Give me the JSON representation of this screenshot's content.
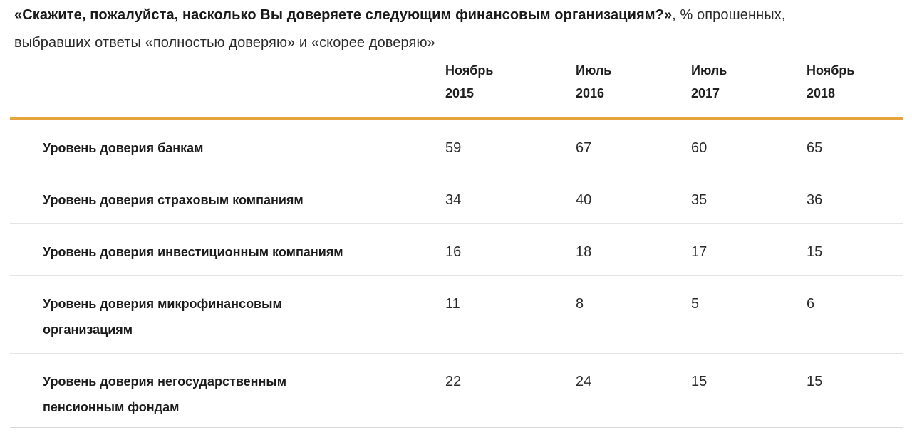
{
  "title": {
    "question_bold": "«Скажите, пожалуйста, насколько Вы доверяете следующим финансовым организациям?»",
    "line1_suffix": ", % опрошенных,",
    "line2": "выбравших ответы «полностью доверяю» и «скорее доверяю»"
  },
  "colors": {
    "accent_rule": "#e8a43c",
    "row_divider": "#e4e4e4",
    "text": "#1c1c1c"
  },
  "chart_data": {
    "type": "table",
    "title": "«Скажите, пожалуйста, насколько Вы доверяете следующим финансовым организациям?», % опрошенных, выбравших ответы «полностью доверяю» и «скорее доверяю»",
    "categories": [
      "Ноябрь 2015",
      "Июль 2016",
      "Июль 2017",
      "Ноябрь 2018"
    ],
    "columns": [
      {
        "month": "Ноябрь",
        "year": "2015"
      },
      {
        "month": "Июль",
        "year": "2016"
      },
      {
        "month": "Июль",
        "year": "2017"
      },
      {
        "month": "Ноябрь",
        "year": "2018"
      }
    ],
    "rows": [
      {
        "label": "Уровень доверия банкам",
        "display_label": "Уровень доверия банкам",
        "values": [
          59,
          67,
          60,
          65
        ]
      },
      {
        "label": "Уровень доверия страховым компаниям",
        "display_label": "Уровень доверия страховым компаниям",
        "values": [
          34,
          40,
          35,
          36
        ]
      },
      {
        "label": "Уровень доверия инвестиционным компаниям",
        "display_label": "Уровень доверия инвестиционным компаниям",
        "values": [
          16,
          18,
          17,
          15
        ]
      },
      {
        "label": "Уровень доверия микрофинансовым организациям",
        "display_label": "Уровень доверия микрофинансовым\nорганизациям",
        "values": [
          11,
          8,
          5,
          6
        ]
      },
      {
        "label": "Уровень доверия негосударственным пенсионным фондам",
        "display_label": "Уровень доверия негосударственным\nпенсионным фондам",
        "values": [
          22,
          24,
          15,
          15
        ]
      }
    ]
  }
}
